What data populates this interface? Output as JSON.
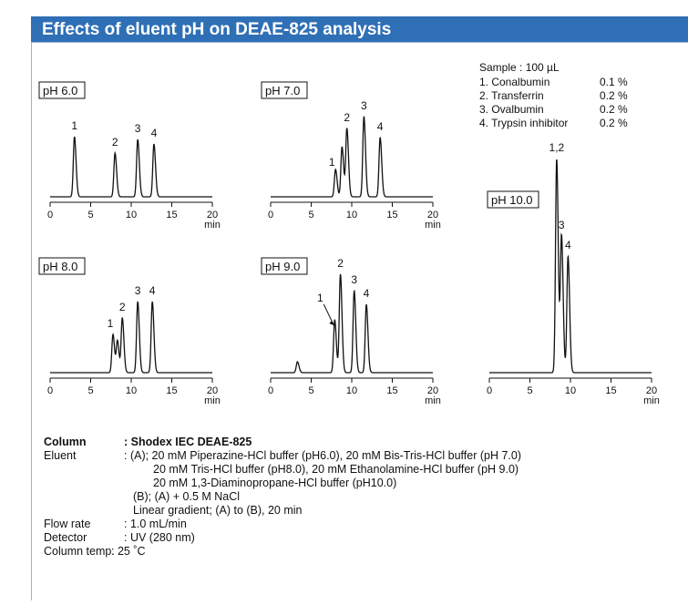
{
  "header": {
    "title": "Effects of eluent pH on DEAE-825 analysis"
  },
  "chart_data": [
    {
      "type": "line",
      "title": "pH 6.0",
      "xlim": [
        0,
        20
      ],
      "xticks": [
        0,
        5,
        10,
        15,
        20
      ],
      "xlabel": "min",
      "peaks": [
        {
          "label": "1",
          "x": 3.0,
          "height": 66
        },
        {
          "label": "2",
          "x": 8.0,
          "height": 48
        },
        {
          "label": "3",
          "x": 10.8,
          "height": 63
        },
        {
          "label": "4",
          "x": 12.8,
          "height": 58
        }
      ]
    },
    {
      "type": "line",
      "title": "pH 7.0",
      "xlim": [
        0,
        20
      ],
      "xticks": [
        0,
        5,
        10,
        15,
        20
      ],
      "xlabel": "min",
      "peaks": [
        {
          "label": "1",
          "x": 8.0,
          "height": 30
        },
        {
          "label": null,
          "x": 8.8,
          "height": 55
        },
        {
          "label": "2",
          "x": 9.4,
          "height": 75
        },
        {
          "label": "3",
          "x": 11.5,
          "height": 88
        },
        {
          "label": "4",
          "x": 13.5,
          "height": 65
        }
      ]
    },
    {
      "type": "line",
      "title": "pH 8.0",
      "xlim": [
        0,
        20
      ],
      "xticks": [
        0,
        5,
        10,
        15,
        20
      ],
      "xlabel": "min",
      "peaks": [
        {
          "label": "1",
          "x": 7.75,
          "height": 42
        },
        {
          "label": null,
          "x": 8.3,
          "height": 35
        },
        {
          "label": "2",
          "x": 8.9,
          "height": 60
        },
        {
          "label": "3",
          "x": 10.8,
          "height": 78
        },
        {
          "label": "4",
          "x": 12.6,
          "height": 78
        }
      ]
    },
    {
      "type": "line",
      "title": "pH 9.0",
      "xlim": [
        0,
        20
      ],
      "xticks": [
        0,
        5,
        10,
        15,
        20
      ],
      "xlabel": "min",
      "peaks": [
        {
          "label": null,
          "x": 3.3,
          "height": 12
        },
        {
          "label": "1",
          "x": 7.9,
          "height": 58
        },
        {
          "label": "2",
          "x": 8.6,
          "height": 108
        },
        {
          "label": "3",
          "x": 10.3,
          "height": 90
        },
        {
          "label": "4",
          "x": 11.8,
          "height": 75
        }
      ]
    },
    {
      "type": "line",
      "title": "pH 10.0",
      "xlim": [
        0,
        20
      ],
      "xticks": [
        0,
        5,
        10,
        15,
        20
      ],
      "xlabel": "min",
      "peaks": [
        {
          "label": "1,2",
          "x": 8.3,
          "height": 235
        },
        {
          "label": "3",
          "x": 8.9,
          "height": 150
        },
        {
          "label": "4",
          "x": 9.7,
          "height": 128
        }
      ]
    }
  ],
  "sample": {
    "title": "Sample : 100 µL",
    "rows": [
      [
        "1. Conalbumin",
        "0.1 %"
      ],
      [
        "2. Transferrin",
        "0.2 %"
      ],
      [
        "3. Ovalbumin",
        "0.2 %"
      ],
      [
        "4. Trypsin inhibitor",
        "0.2 %"
      ]
    ]
  },
  "conditions": [
    {
      "key": "Column",
      "lines": [
        ": Shodex IEC DEAE-825"
      ]
    },
    {
      "key": "Eluent",
      "lines": [
        ": (A); 20 mM Piperazine-HCl buffer (pH6.0), 20 mM Bis-Tris-HCl buffer (pH 7.0)",
        "20 mM Tris-HCl buffer (pH8.0), 20 mM Ethanolamine-HCl buffer (pH 9.0)",
        "20 mM 1,3-Diaminopropane-HCl buffer (pH10.0)",
        "(B); (A) + 0.5 M NaCl",
        "Linear gradient; (A) to (B), 20 min"
      ]
    },
    {
      "key": "Flow rate",
      "lines": [
        ": 1.0 mL/min"
      ]
    },
    {
      "key": "Detector",
      "lines": [
        ": UV (280 nm)"
      ]
    },
    {
      "key": "Column temp.",
      "lines": [
        ": 25 ˚C"
      ]
    }
  ]
}
